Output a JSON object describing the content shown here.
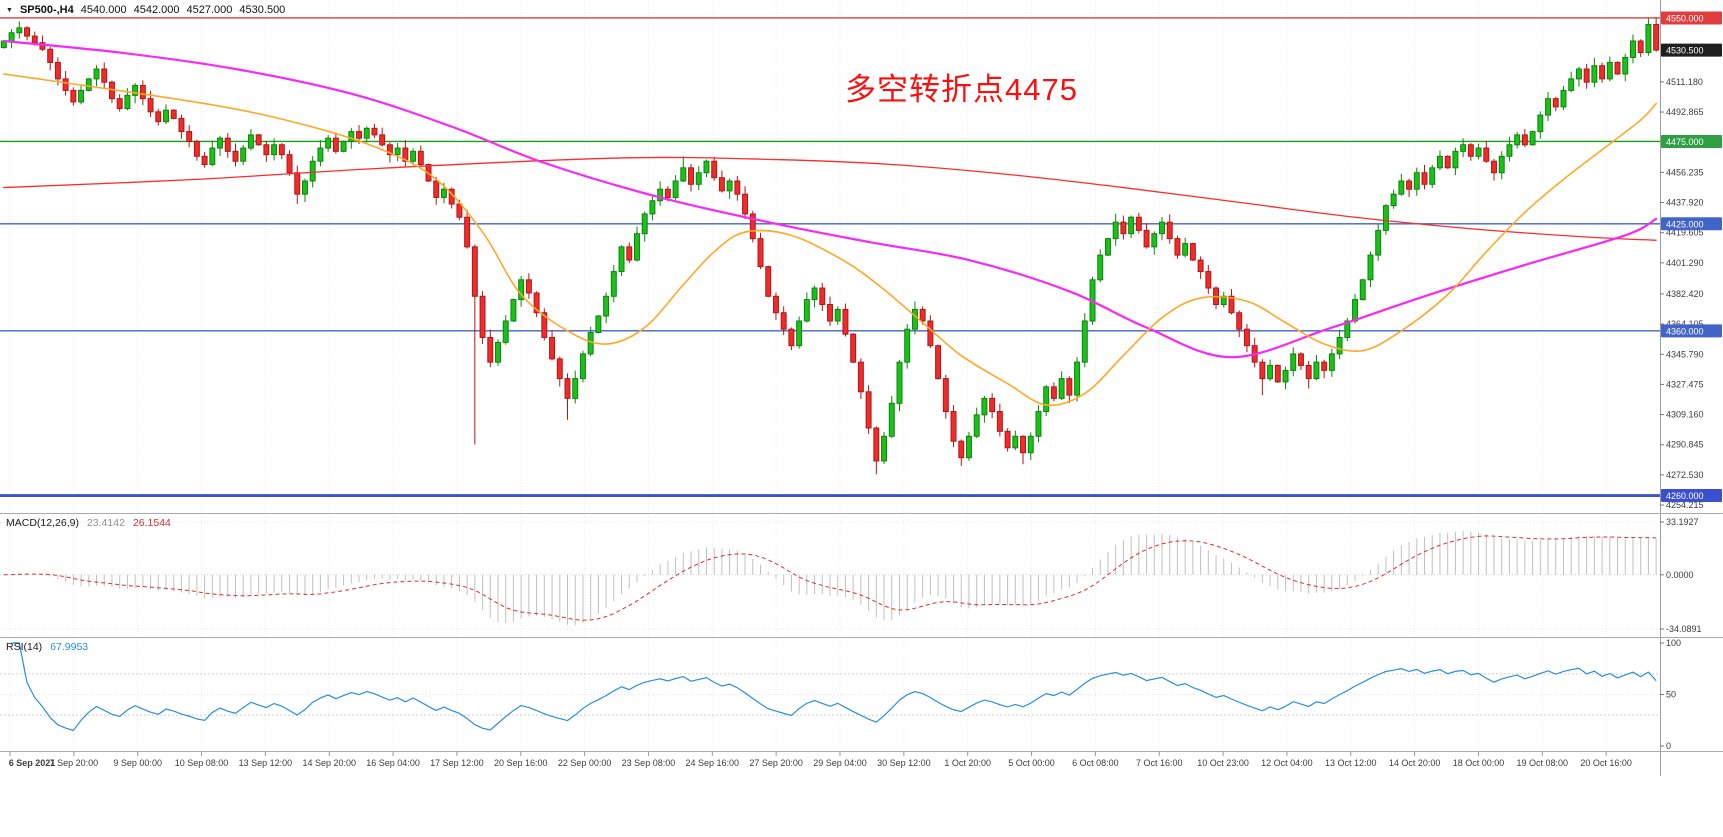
{
  "window": {
    "symbol_timeframe": "SP500-,H4",
    "ohlc": {
      "open": "4540.000",
      "high": "4542.000",
      "low": "4527.000",
      "close": "4530.500"
    }
  },
  "annotation": {
    "text": "多空转折点4475",
    "color": "#fa0f0f"
  },
  "chart_data": {
    "type": "candlestick",
    "title": "SP500-,H4",
    "x_axis_labels": [
      "6 Sep 2021",
      "7 Sep 20:00",
      "9 Sep 00:00",
      "10 Sep 08:00",
      "13 Sep 12:00",
      "14 Sep 20:00",
      "16 Sep 04:00",
      "17 Sep 12:00",
      "20 Sep 16:00",
      "22 Sep 00:00",
      "23 Sep 08:00",
      "24 Sep 16:00",
      "27 Sep 20:00",
      "29 Sep 04:00",
      "30 Sep 12:00",
      "1 Oct 20:00",
      "5 Oct 00:00",
      "6 Oct 08:00",
      "7 Oct 16:00",
      "10 Oct 23:00",
      "12 Oct 04:00",
      "13 Oct 12:00",
      "14 Oct 20:00",
      "18 Oct 00:00",
      "19 Oct 08:00",
      "20 Oct 16:00"
    ],
    "price_axis": {
      "ylim": [
        4249.4,
        4560.9
      ],
      "ticks": [
        4511.18,
        4492.865,
        4456.235,
        4437.92,
        4419.605,
        4401.29,
        4382.42,
        4364.105,
        4345.79,
        4327.475,
        4309.16,
        4290.845,
        4272.53,
        4254.215
      ],
      "badges": [
        {
          "label": "4550.000",
          "price": 4550.0,
          "bg": "#e23d3d"
        },
        {
          "label": "4530.500",
          "price": 4530.5,
          "bg": "#1f1f1f"
        },
        {
          "label": "4475.000",
          "price": 4475.0,
          "bg": "#2f9e44"
        },
        {
          "label": "4425.000",
          "price": 4425.0,
          "bg": "#4263c7"
        },
        {
          "label": "4360.000",
          "price": 4360.0,
          "bg": "#4263c7"
        },
        {
          "label": "4260.000",
          "price": 4260.0,
          "bg": "#3b50ce"
        }
      ]
    },
    "levels": [
      {
        "price": 4550.0,
        "color": "#e23d3d",
        "w": 1.4
      },
      {
        "price": 4475.0,
        "color": "#12a112",
        "w": 1.4
      },
      {
        "price": 4425.0,
        "color": "#4263c7",
        "w": 1.4
      },
      {
        "price": 4360.0,
        "color": "#4263c7",
        "w": 1.4
      },
      {
        "price": 4260.0,
        "color": "#3b50ce",
        "w": 2.8
      }
    ],
    "candles": {
      "first_open": 4532,
      "colors": {
        "up": "#19c119",
        "up_border": "#0c840c",
        "down": "#ef2b2b",
        "down_border": "#b31515"
      },
      "closes": [
        4536,
        4541,
        4544,
        4539,
        4535,
        4531,
        4523,
        4513,
        4506,
        4499,
        4506,
        4513,
        4519,
        4511,
        4501,
        4495,
        4503,
        4509,
        4501,
        4493,
        4487,
        4494,
        4489,
        4481,
        4475,
        4466,
        4461,
        4471,
        4477,
        4469,
        4463,
        4471,
        4479,
        4473,
        4467,
        4473,
        4467,
        4456,
        4443,
        4451,
        4463,
        4471,
        4477,
        4469,
        4475,
        4481,
        4477,
        4483,
        4479,
        4473,
        4467,
        4471,
        4463,
        4469,
        4461,
        4451,
        4441,
        4446,
        4437,
        4429,
        4411,
        4381,
        4356,
        4341,
        4353,
        4366,
        4379,
        4391,
        4383,
        4371,
        4356,
        4343,
        4331,
        4319,
        4331,
        4346,
        4359,
        4369,
        4381,
        4396,
        4411,
        4403,
        4419,
        4431,
        4439,
        4446,
        4441,
        4451,
        4459,
        4449,
        4456,
        4463,
        4453,
        4445,
        4451,
        4443,
        4431,
        4416,
        4399,
        4381,
        4371,
        4361,
        4351,
        4366,
        4379,
        4386,
        4376,
        4366,
        4373,
        4358,
        4341,
        4323,
        4301,
        4281,
        4296,
        4316,
        4341,
        4361,
        4373,
        4366,
        4351,
        4331,
        4311,
        4293,
        4283,
        4296,
        4309,
        4319,
        4311,
        4299,
        4289,
        4296,
        4286,
        4296,
        4311,
        4326,
        4319,
        4331,
        4321,
        4341,
        4366,
        4391,
        4406,
        4416,
        4426,
        4419,
        4429,
        4421,
        4411,
        4419,
        4426,
        4416,
        4406,
        4413,
        4403,
        4396,
        4386,
        4376,
        4381,
        4371,
        4361,
        4351,
        4341,
        4331,
        4339,
        4329,
        4336,
        4346,
        4339,
        4331,
        4341,
        4336,
        4346,
        4356,
        4366,
        4379,
        4391,
        4406,
        4421,
        4436,
        4443,
        4451,
        4446,
        4456,
        4449,
        4459,
        4466,
        4459,
        4469,
        4473,
        4466,
        4471,
        4463,
        4456,
        4466,
        4473,
        4479,
        4473,
        4481,
        4491,
        4501,
        4496,
        4506,
        4513,
        4519,
        4511,
        4521,
        4513,
        4523,
        4516,
        4526,
        4536,
        4529,
        4546,
        4530.5
      ],
      "wick_overrides": {
        "38": {
          "low": 4437
        },
        "61": {
          "low": 4291
        },
        "73": {
          "low": 4306
        },
        "88": {
          "high": 4466
        },
        "113": {
          "low": 4273
        },
        "124": {
          "low": 4278
        },
        "132": {
          "low": 4279
        },
        "144": {
          "high": 4431
        },
        "163": {
          "low": 4321
        },
        "169": {
          "low": 4325
        },
        "213": {
          "high": 4550
        }
      }
    },
    "moving_averages": [
      {
        "name": "ma-slow-line",
        "color": "#ff2a2a",
        "width": 1.3,
        "points": [
          [
            0,
            4447
          ],
          [
            25,
            4452
          ],
          [
            50,
            4459
          ],
          [
            80,
            4465
          ],
          [
            100,
            4464
          ],
          [
            115,
            4461
          ],
          [
            130,
            4455
          ],
          [
            145,
            4447
          ],
          [
            160,
            4438
          ],
          [
            175,
            4429
          ],
          [
            190,
            4422
          ],
          [
            205,
            4417
          ],
          [
            214,
            4415
          ]
        ]
      },
      {
        "name": "ma-mid-line",
        "color": "#f52af5",
        "width": 2.2,
        "points": [
          [
            0,
            4536
          ],
          [
            15,
            4529
          ],
          [
            30,
            4519
          ],
          [
            45,
            4504
          ],
          [
            58,
            4484
          ],
          [
            70,
            4462
          ],
          [
            85,
            4441
          ],
          [
            100,
            4425
          ],
          [
            112,
            4414
          ],
          [
            125,
            4403
          ],
          [
            138,
            4384
          ],
          [
            148,
            4362
          ],
          [
            159,
            4344
          ],
          [
            172,
            4362
          ],
          [
            184,
            4381
          ],
          [
            197,
            4400
          ],
          [
            210,
            4418
          ],
          [
            214,
            4428
          ]
        ]
      },
      {
        "name": "ma-fast-line",
        "color": "#ffa726",
        "width": 1.6,
        "points": [
          [
            0,
            4516
          ],
          [
            26,
            4498
          ],
          [
            39,
            4485
          ],
          [
            49,
            4470
          ],
          [
            56,
            4452
          ],
          [
            62,
            4420
          ],
          [
            67,
            4382
          ],
          [
            73,
            4360
          ],
          [
            78,
            4352
          ],
          [
            83,
            4362
          ],
          [
            88,
            4388
          ],
          [
            92,
            4408
          ],
          [
            96,
            4420
          ],
          [
            102,
            4418
          ],
          [
            109,
            4402
          ],
          [
            114,
            4385
          ],
          [
            119,
            4365
          ],
          [
            124,
            4345
          ],
          [
            130,
            4328
          ],
          [
            135,
            4315
          ],
          [
            140,
            4322
          ],
          [
            145,
            4345
          ],
          [
            150,
            4368
          ],
          [
            155,
            4380
          ],
          [
            161,
            4378
          ],
          [
            166,
            4365
          ],
          [
            171,
            4352
          ],
          [
            176,
            4348
          ],
          [
            181,
            4360
          ],
          [
            187,
            4382
          ],
          [
            192,
            4408
          ],
          [
            197,
            4432
          ],
          [
            202,
            4452
          ],
          [
            207,
            4470
          ],
          [
            212,
            4488
          ],
          [
            214,
            4498
          ]
        ]
      }
    ],
    "macd": {
      "label": "MACD(12,26,9)",
      "value_main": "23.4142",
      "value_signal": "26.1544",
      "fast": 12,
      "slow": 26,
      "signal": 9,
      "range": [
        -34.0891,
        33.1927
      ],
      "axis": [
        "33.1927",
        "0.0000",
        "-34.0891"
      ],
      "hist_color": "#c0c0c0",
      "signal_color": "#d93030"
    },
    "rsi": {
      "label": "RSI(14)",
      "value": "67.9953",
      "period": 14,
      "range": [
        0,
        100
      ],
      "axis": [
        "100",
        "50",
        "0"
      ],
      "levels": [
        70,
        30
      ],
      "color": "#2a8fdd"
    }
  }
}
